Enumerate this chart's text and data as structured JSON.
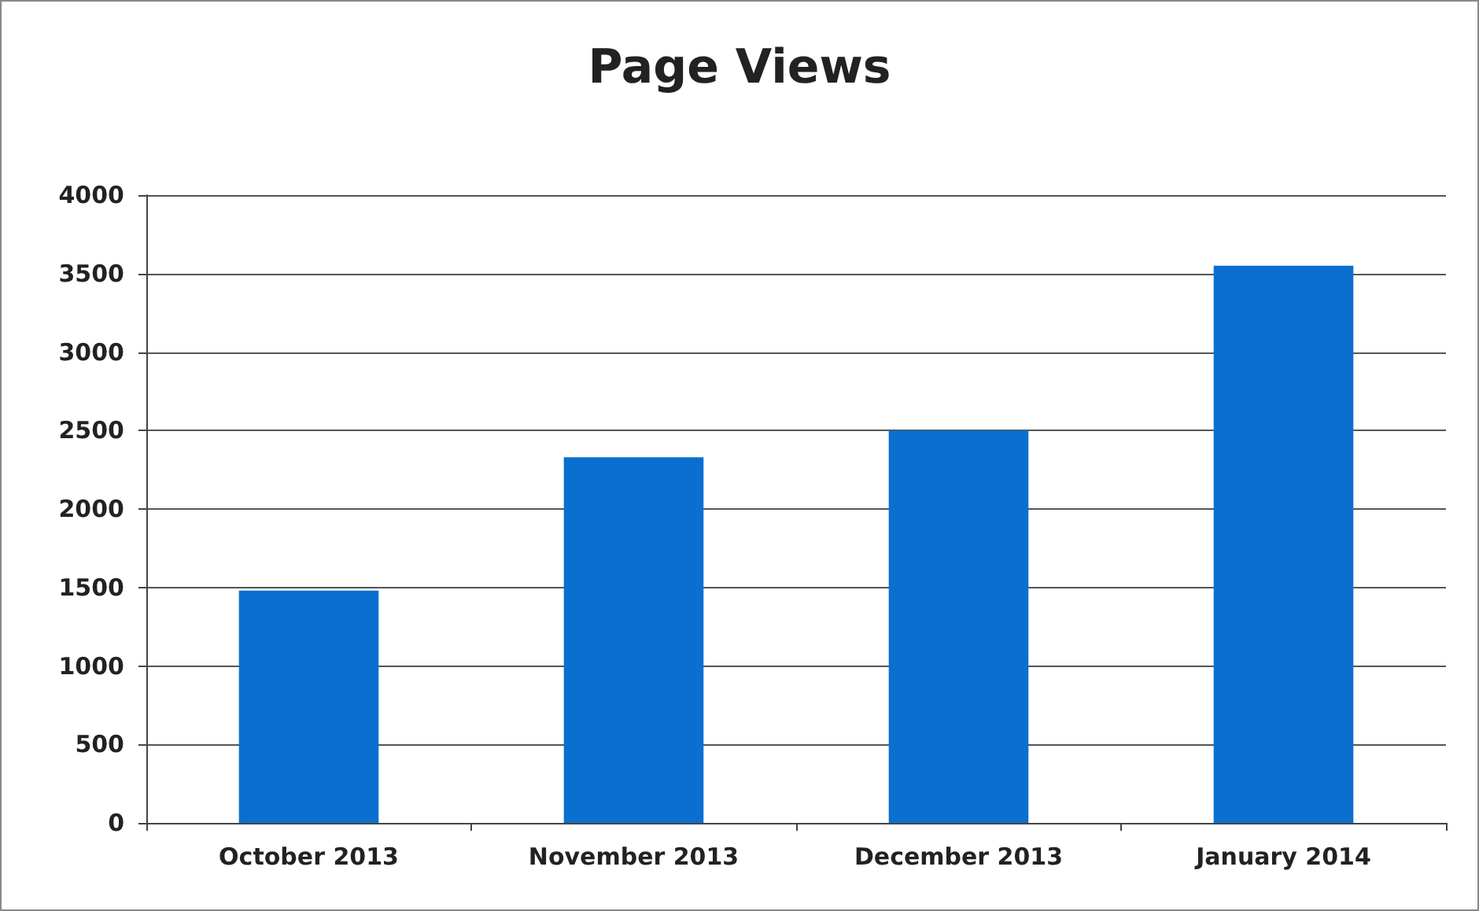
{
  "chart_data": {
    "type": "bar",
    "title": "Page Views",
    "categories": [
      "October 2013",
      "November 2013",
      "December 2013",
      "January 2014"
    ],
    "values": [
      1480,
      2330,
      2500,
      3550
    ],
    "color": "#0b6fd0",
    "ylim": [
      0,
      4000
    ],
    "yticks": [
      0,
      500,
      1000,
      1500,
      2000,
      2500,
      3000,
      3500,
      4000
    ],
    "grid": "y"
  }
}
